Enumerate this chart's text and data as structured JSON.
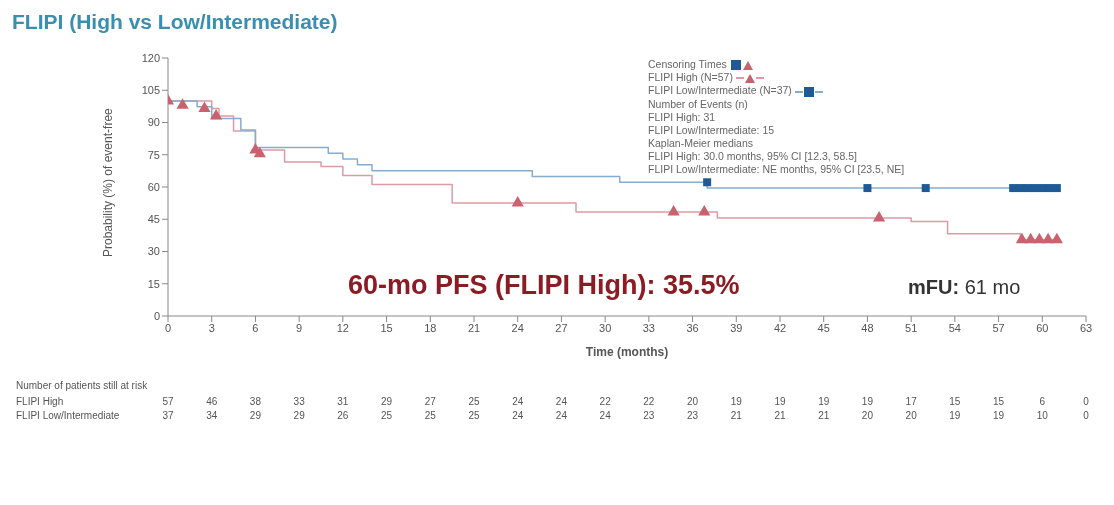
{
  "chart_data": {
    "type": "step",
    "title": "FLIPI (High vs Low/Intermediate)",
    "xlabel": "Time (months)",
    "ylabel": "Probability (%) of event-free",
    "xlim": [
      0,
      63
    ],
    "xticks": [
      0,
      3,
      6,
      9,
      12,
      15,
      18,
      21,
      24,
      27,
      30,
      33,
      36,
      39,
      42,
      45,
      48,
      51,
      54,
      57,
      60,
      63
    ],
    "ylim": [
      0,
      120
    ],
    "yticks": [
      0,
      15,
      30,
      45,
      60,
      75,
      90,
      105,
      120
    ],
    "grid": false,
    "legend": "top right",
    "series": [
      {
        "name": "FLIPI High (N=57)",
        "color": "#e09aa4",
        "marker": "none",
        "x": [
          0,
          3,
          3.5,
          4.5,
          6,
          8,
          10.5,
          12,
          14,
          19.5,
          28,
          37.7,
          51,
          53.5,
          58.5,
          61
        ],
        "values": [
          100,
          96.5,
          93,
          86,
          77.2,
          71.6,
          69.5,
          65.3,
          61.2,
          52.6,
          48.4,
          45.6,
          43.9,
          38.3,
          35.5,
          35.5
        ]
      },
      {
        "name": "FLIPI Low/Intermediate (N=37)",
        "color": "#86acd0",
        "marker": "none",
        "x": [
          0,
          2,
          3,
          5,
          6,
          11,
          12,
          13,
          14,
          25,
          31,
          37,
          61
        ],
        "values": [
          100,
          97.3,
          91.9,
          86.5,
          78.4,
          75.7,
          73,
          70.3,
          67.6,
          64.9,
          62.2,
          59.5,
          59.5
        ]
      },
      {
        "type": "scatter",
        "color": "#c9616f",
        "marker": "triangle",
        "x": [
          0,
          1,
          2.5,
          3.3,
          6,
          6.3,
          24,
          34.7,
          36.8,
          48.8,
          58.6,
          59.2,
          59.8,
          60.4,
          61
        ],
        "values": [
          100,
          98,
          96.5,
          93,
          77.2,
          75.5,
          52.6,
          48.4,
          48.4,
          45.6,
          35.5,
          35.5,
          35.5,
          35.5,
          35.5
        ]
      },
      {
        "type": "scatter",
        "color": "#1f5a96",
        "marker": "square",
        "x": [
          37,
          48,
          52,
          58,
          58.5,
          59,
          59.5,
          60,
          60.5,
          61
        ],
        "values": [
          62.2,
          59.5,
          59.5,
          59.5,
          59.5,
          59.5,
          59.5,
          59.5,
          59.5,
          59.5
        ]
      }
    ],
    "annotations": [
      "Censoring Times",
      "Number of Events (n)",
      "FLIPI High: 31",
      "FLIPI Low/Intermediate: 15",
      "Kaplan-Meier medians",
      "FLIPI High: 30.0 months, 95% CI [12.3, 58.5]",
      "FLIPI Low/Intermediate: NE months, 95% CI [23.5, NE]",
      "60-mo PFS (FLIPI High): 35.5%",
      "mFU: 61 mo",
      "Number of patients still at risk",
      "FLIPI High",
      "57 46 38 33 31 29 27 25 24 24 22 22 20 19 19 19 19 17 15 15 6 0",
      "FLIPI Low/Intermediate",
      "37 34 29 29 26 25 25 25 24 24 24 23 23 21 21 21 20 20 19 19 10 0"
    ]
  }
}
